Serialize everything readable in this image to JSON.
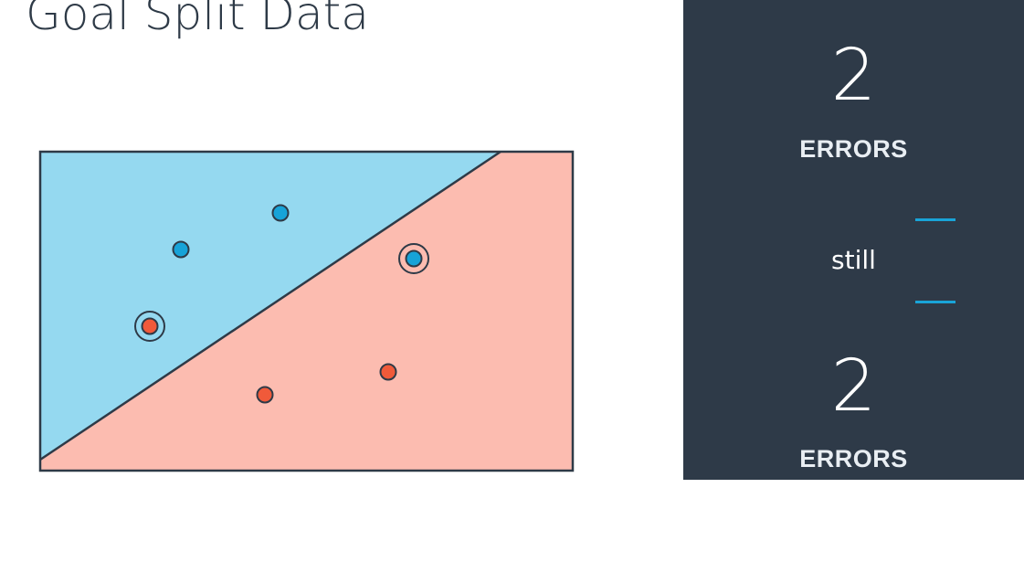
{
  "slide": {
    "title": "Goal Split Data"
  },
  "diagram": {
    "colors": {
      "blue_region": "#95d9f0",
      "red_region": "#fcbcb0",
      "blue_point": "#17a3d8",
      "red_point": "#f05a3a",
      "outline": "#2e3a47"
    },
    "points": [
      {
        "class": "blue",
        "misclassified": false
      },
      {
        "class": "blue",
        "misclassified": false
      },
      {
        "class": "blue",
        "misclassified": true
      },
      {
        "class": "red",
        "misclassified": true
      },
      {
        "class": "red",
        "misclassified": false
      },
      {
        "class": "red",
        "misclassified": false
      }
    ]
  },
  "panel": {
    "top": {
      "count": "2",
      "label": "ERRORS"
    },
    "middle": {
      "text": "still"
    },
    "bottom": {
      "count": "2",
      "label": "ERRORS"
    }
  }
}
